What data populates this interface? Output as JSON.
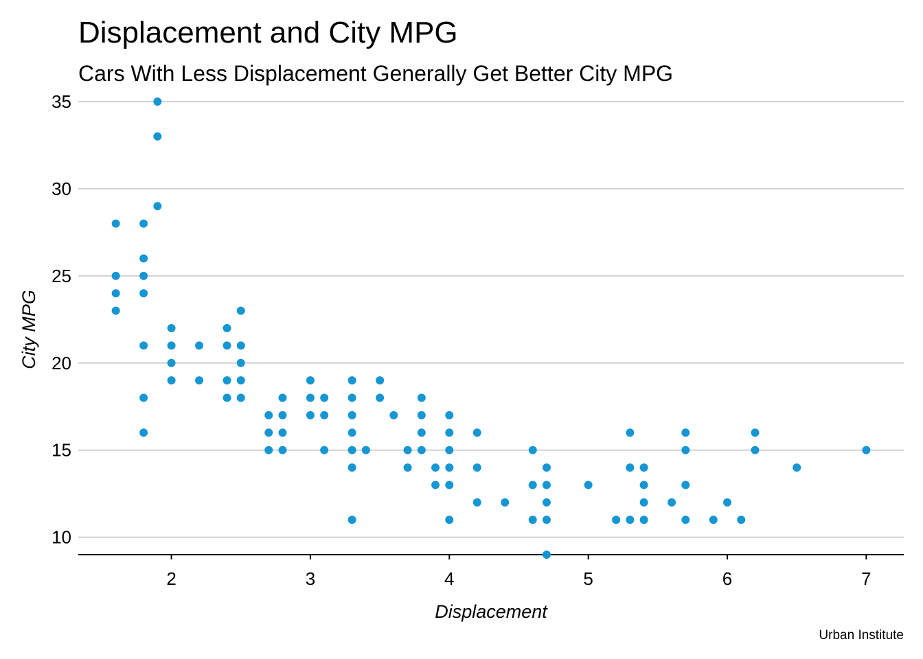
{
  "chart_data": {
    "type": "scatter",
    "title": "Displacement and City MPG",
    "subtitle": "Cars With Less Displacement Generally Get Better City MPG",
    "xlabel": "Displacement",
    "ylabel": "City MPG",
    "caption": "Urban Institute",
    "xlim": [
      1.33,
      7.27
    ],
    "ylim": [
      9,
      35
    ],
    "xticks": [
      2,
      3,
      4,
      5,
      6,
      7
    ],
    "yticks": [
      10,
      15,
      20,
      25,
      30,
      35
    ],
    "grid": "horizontal",
    "point_color": "#1696d2",
    "gridline_color": "#d2d2d2",
    "points": [
      [
        1.6,
        28
      ],
      [
        1.6,
        25
      ],
      [
        1.6,
        24
      ],
      [
        1.6,
        23
      ],
      [
        1.8,
        28
      ],
      [
        1.8,
        26
      ],
      [
        1.8,
        25
      ],
      [
        1.8,
        24
      ],
      [
        1.8,
        21
      ],
      [
        1.8,
        18
      ],
      [
        1.8,
        16
      ],
      [
        1.9,
        35
      ],
      [
        1.9,
        33
      ],
      [
        1.9,
        29
      ],
      [
        2.0,
        22
      ],
      [
        2.0,
        21
      ],
      [
        2.0,
        20
      ],
      [
        2.0,
        19
      ],
      [
        2.2,
        21
      ],
      [
        2.2,
        19
      ],
      [
        2.4,
        22
      ],
      [
        2.4,
        21
      ],
      [
        2.4,
        19
      ],
      [
        2.4,
        18
      ],
      [
        2.5,
        23
      ],
      [
        2.5,
        21
      ],
      [
        2.5,
        20
      ],
      [
        2.5,
        19
      ],
      [
        2.5,
        18
      ],
      [
        2.7,
        17
      ],
      [
        2.7,
        16
      ],
      [
        2.7,
        15
      ],
      [
        2.8,
        18
      ],
      [
        2.8,
        17
      ],
      [
        2.8,
        16
      ],
      [
        2.8,
        15
      ],
      [
        3.0,
        19
      ],
      [
        3.0,
        18
      ],
      [
        3.0,
        17
      ],
      [
        3.1,
        18
      ],
      [
        3.1,
        17
      ],
      [
        3.1,
        15
      ],
      [
        3.3,
        19
      ],
      [
        3.3,
        18
      ],
      [
        3.3,
        17
      ],
      [
        3.3,
        16
      ],
      [
        3.3,
        15
      ],
      [
        3.3,
        14
      ],
      [
        3.3,
        11
      ],
      [
        3.4,
        15
      ],
      [
        3.5,
        19
      ],
      [
        3.5,
        18
      ],
      [
        3.6,
        17
      ],
      [
        3.7,
        15
      ],
      [
        3.7,
        14
      ],
      [
        3.8,
        18
      ],
      [
        3.8,
        17
      ],
      [
        3.8,
        16
      ],
      [
        3.8,
        15
      ],
      [
        3.9,
        14
      ],
      [
        3.9,
        13
      ],
      [
        4.0,
        17
      ],
      [
        4.0,
        16
      ],
      [
        4.0,
        15
      ],
      [
        4.0,
        14
      ],
      [
        4.0,
        13
      ],
      [
        4.0,
        11
      ],
      [
        4.2,
        16
      ],
      [
        4.2,
        14
      ],
      [
        4.2,
        12
      ],
      [
        4.4,
        12
      ],
      [
        4.6,
        15
      ],
      [
        4.6,
        13
      ],
      [
        4.6,
        11
      ],
      [
        4.7,
        14
      ],
      [
        4.7,
        13
      ],
      [
        4.7,
        12
      ],
      [
        4.7,
        11
      ],
      [
        4.7,
        9
      ],
      [
        5.0,
        13
      ],
      [
        5.2,
        11
      ],
      [
        5.3,
        16
      ],
      [
        5.3,
        14
      ],
      [
        5.3,
        11
      ],
      [
        5.4,
        14
      ],
      [
        5.4,
        13
      ],
      [
        5.4,
        12
      ],
      [
        5.4,
        11
      ],
      [
        5.6,
        12
      ],
      [
        5.7,
        16
      ],
      [
        5.7,
        15
      ],
      [
        5.7,
        13
      ],
      [
        5.7,
        11
      ],
      [
        5.9,
        11
      ],
      [
        6.0,
        12
      ],
      [
        6.1,
        11
      ],
      [
        6.2,
        16
      ],
      [
        6.2,
        15
      ],
      [
        6.5,
        14
      ],
      [
        7.0,
        15
      ]
    ]
  }
}
